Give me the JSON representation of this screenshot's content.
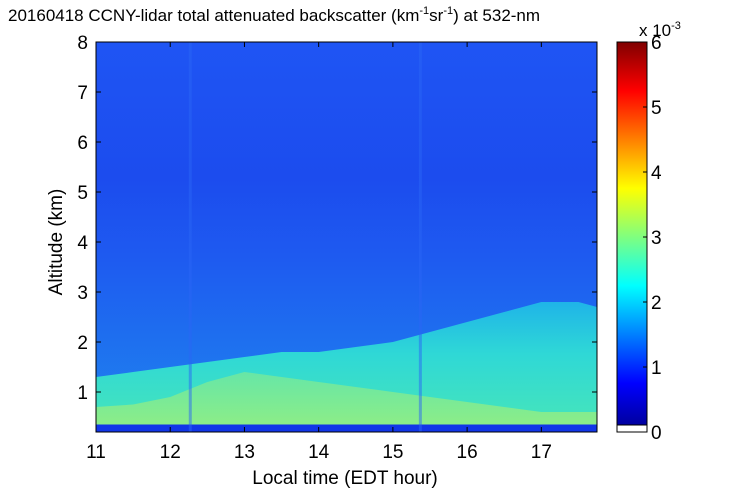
{
  "chart_data": {
    "type": "heatmap",
    "title_parts": {
      "prefix": "20160418 CCNY-lidar total attenuated backscatter (km",
      "exp1": "-1",
      "mid": "sr",
      "exp2": "-1",
      "suffix": ") at 532-nm"
    },
    "xlabel": "Local time (EDT hour)",
    "ylabel": "Altitude (km)",
    "xlim": [
      11,
      17.75
    ],
    "ylim": [
      0.2,
      8
    ],
    "x_ticks": [
      "11",
      "12",
      "13",
      "14",
      "15",
      "16",
      "17"
    ],
    "y_ticks": [
      "1",
      "2",
      "3",
      "4",
      "5",
      "6",
      "7",
      "8"
    ],
    "colorbar": {
      "colormap": "jet",
      "range": [
        0,
        6
      ],
      "ticks": [
        "0",
        "1",
        "2",
        "3",
        "4",
        "5",
        "6"
      ],
      "multiplier_base": "x 10",
      "multiplier_exp": "-3",
      "colors": [
        "#00008f",
        "#0000ff",
        "#00ffff",
        "#ffff00",
        "#ff0000",
        "#800000"
      ]
    },
    "boundary_layer_top_km": {
      "time": [
        11,
        11.5,
        12,
        12.5,
        13,
        13.5,
        14,
        14.5,
        15,
        15.5,
        16,
        16.5,
        17,
        17.5,
        17.75
      ],
      "altitude": [
        1.3,
        1.4,
        1.5,
        1.6,
        1.7,
        1.8,
        1.8,
        1.9,
        2.0,
        2.2,
        2.4,
        2.6,
        2.8,
        2.8,
        2.7
      ]
    },
    "aerosol_layer_top_km": {
      "time": [
        11,
        11.5,
        12,
        12.5,
        13,
        13.5,
        14,
        14.5,
        15,
        15.5,
        16,
        16.5,
        17,
        17.5,
        17.75
      ],
      "altitude": [
        0.7,
        0.75,
        0.9,
        1.2,
        1.4,
        1.3,
        1.2,
        1.1,
        1.0,
        0.9,
        0.8,
        0.7,
        0.6,
        0.6,
        0.6
      ]
    }
  }
}
